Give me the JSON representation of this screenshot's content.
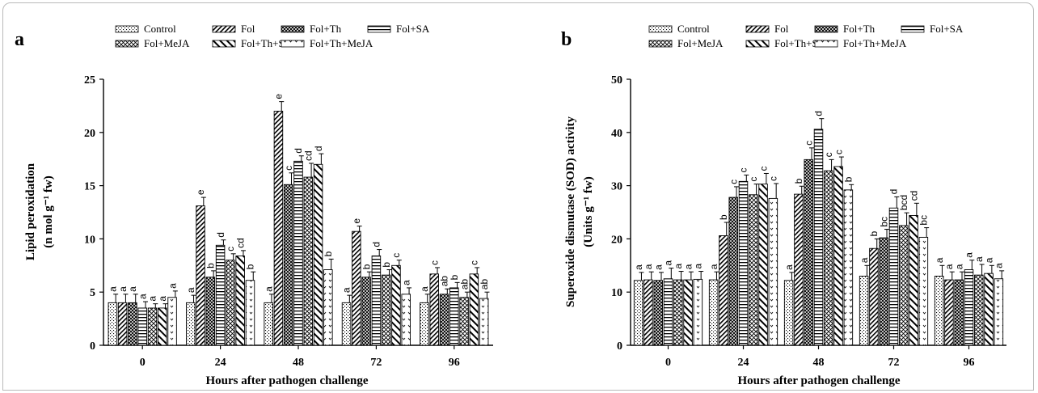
{
  "figure": {
    "xlabel": "Hours after pathogen challenge",
    "series": [
      "Control",
      "Fol",
      "Fol+Th",
      "Fol+SA",
      "Fol+MeJA",
      "Fol+Th+SA",
      "Fol+Th+MeJA"
    ]
  },
  "chart_data": [
    {
      "type": "bar",
      "panel": "a",
      "title": "",
      "xlabel": "Hours after pathogen challenge",
      "ylabel_line1": "Lipid peroxidation",
      "ylabel_line2": "(n mol g⁻¹ fw)",
      "ylim": [
        0,
        25
      ],
      "yticks": [
        0,
        5,
        10,
        15,
        20,
        25
      ],
      "categories": [
        "0",
        "24",
        "48",
        "72",
        "96"
      ],
      "legend": [
        "Control",
        "Fol",
        "Fol+Th",
        "Fol+SA",
        "Fol+MeJA",
        "Fol+Th+SA",
        "Fol+Th+MeJA"
      ],
      "series": [
        {
          "name": "Control",
          "values": [
            4.0,
            4.0,
            4.0,
            4.0,
            4.0
          ],
          "errors": [
            0.8,
            0.7,
            0.8,
            0.7,
            0.8
          ],
          "labels": [
            "a",
            "a",
            "a",
            "a",
            "a"
          ]
        },
        {
          "name": "Fol",
          "values": [
            4.0,
            13.1,
            22.0,
            10.7,
            6.7
          ],
          "errors": [
            0.8,
            0.8,
            0.9,
            0.5,
            0.6
          ],
          "labels": [
            "a",
            "e",
            "e",
            "e",
            "c"
          ]
        },
        {
          "name": "Fol+Th",
          "values": [
            4.0,
            6.4,
            15.1,
            6.4,
            4.8
          ],
          "errors": [
            0.8,
            0.6,
            1.1,
            0.5,
            0.5
          ],
          "labels": [
            "a",
            "b",
            "c",
            "b",
            "ab"
          ]
        },
        {
          "name": "Fol+SA",
          "values": [
            3.5,
            9.4,
            17.3,
            8.4,
            5.4
          ],
          "errors": [
            0.6,
            0.5,
            0.5,
            0.6,
            0.5
          ],
          "labels": [
            "a",
            "d",
            "d",
            "d",
            "b"
          ]
        },
        {
          "name": "Fol+MeJA",
          "values": [
            3.5,
            8.0,
            15.8,
            6.6,
            4.5
          ],
          "errors": [
            0.4,
            0.6,
            1.3,
            0.5,
            0.5
          ],
          "labels": [
            "a",
            "c",
            "cd",
            "b",
            "ab"
          ]
        },
        {
          "name": "Fol+Th+SA",
          "values": [
            3.5,
            8.4,
            17.0,
            7.5,
            6.7
          ],
          "errors": [
            0.4,
            0.5,
            1.0,
            0.5,
            0.6
          ],
          "labels": [
            "a",
            "cd",
            "d",
            "c",
            "c"
          ]
        },
        {
          "name": "Fol+Th+MeJA",
          "values": [
            4.5,
            6.1,
            7.1,
            4.8,
            4.4
          ],
          "errors": [
            0.6,
            0.8,
            1.0,
            0.6,
            0.6
          ],
          "labels": [
            "a",
            "b",
            "b",
            "a",
            "ab"
          ]
        }
      ]
    },
    {
      "type": "bar",
      "panel": "b",
      "title": "",
      "xlabel": "Hours after pathogen challenge",
      "ylabel_line1": "Superoxide dismutase (SOD) activity",
      "ylabel_line2": "(Units g⁻¹ fw)",
      "ylim": [
        0,
        50
      ],
      "yticks": [
        0,
        10,
        20,
        30,
        40,
        50
      ],
      "categories": [
        "0",
        "24",
        "48",
        "72",
        "96"
      ],
      "legend": [
        "Control",
        "Fol",
        "Fol+Th",
        "Fol+SA",
        "Fol+MeJA",
        "Fol+Th+SA",
        "Fol+Th+MeJA"
      ],
      "series": [
        {
          "name": "Control",
          "values": [
            12.2,
            12.3,
            12.2,
            13.0,
            13.0
          ],
          "errors": [
            1.5,
            1.5,
            1.5,
            2.0,
            2.0
          ],
          "labels": [
            "a",
            "a",
            "a",
            "a",
            "a"
          ]
        },
        {
          "name": "Fol",
          "values": [
            12.3,
            20.6,
            28.4,
            18.2,
            12.3
          ],
          "errors": [
            1.5,
            2.5,
            1.5,
            1.8,
            1.5
          ],
          "labels": [
            "a",
            "b",
            "b",
            "b",
            "a"
          ]
        },
        {
          "name": "Fol+Th",
          "values": [
            12.2,
            27.8,
            34.9,
            20.2,
            12.3
          ],
          "errors": [
            1.5,
            2.0,
            2.2,
            1.6,
            1.5
          ],
          "labels": [
            "a",
            "c",
            "c",
            "bc",
            "a"
          ]
        },
        {
          "name": "Fol+SA",
          "values": [
            12.5,
            30.8,
            40.6,
            25.8,
            14.2
          ],
          "errors": [
            2.0,
            1.2,
            2.0,
            2.1,
            1.8
          ],
          "labels": [
            "a",
            "c",
            "d",
            "d",
            "a"
          ]
        },
        {
          "name": "Fol+MeJA",
          "values": [
            12.3,
            28.3,
            32.8,
            22.5,
            13.2
          ],
          "errors": [
            1.6,
            2.0,
            2.1,
            2.4,
            2.0
          ],
          "labels": [
            "a",
            "c",
            "c",
            "bcd",
            "a"
          ]
        },
        {
          "name": "Fol+Th+SA",
          "values": [
            12.3,
            30.3,
            33.6,
            24.4,
            13.5
          ],
          "errors": [
            1.5,
            2.0,
            1.8,
            2.3,
            1.5
          ],
          "labels": [
            "a",
            "c",
            "c",
            "cd",
            "a"
          ]
        },
        {
          "name": "Fol+Th+MeJA",
          "values": [
            12.4,
            27.6,
            29.2,
            20.3,
            12.5
          ],
          "errors": [
            1.5,
            2.8,
            1.0,
            1.8,
            1.5
          ],
          "labels": [
            "a",
            "c",
            "b",
            "bc",
            "a"
          ]
        }
      ]
    }
  ]
}
